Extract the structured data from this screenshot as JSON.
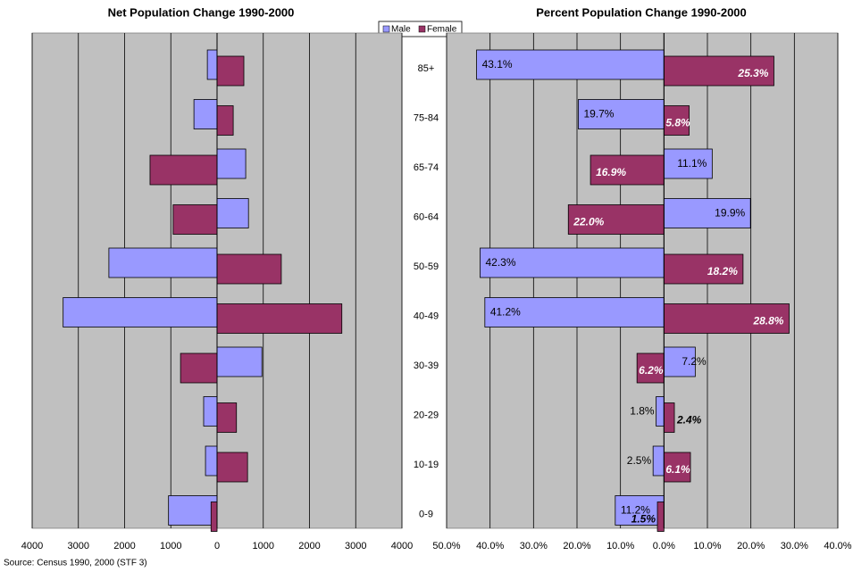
{
  "chart_data": [
    {
      "type": "bar",
      "orientation": "horizontal",
      "title": "Net Population Change 1990-2000",
      "categories": [
        "85+",
        "75-84",
        "65-74",
        "60-64",
        "50-59",
        "40-49",
        "30-39",
        "20-29",
        "10-19",
        "0-9"
      ],
      "series": [
        {
          "name": "Male",
          "color": "#9999ff",
          "values": [
            -210,
            -500,
            620,
            680,
            -2340,
            -3330,
            970,
            -290,
            -250,
            -1050
          ]
        },
        {
          "name": "Female",
          "color": "#993366",
          "values": [
            580,
            350,
            -1450,
            -950,
            1390,
            2700,
            -790,
            420,
            660,
            -130
          ]
        }
      ],
      "xlim": [
        -4000,
        4000
      ],
      "xticks": [
        {
          "value": -4000,
          "label": "4000"
        },
        {
          "value": -3000,
          "label": "3000"
        },
        {
          "value": -2000,
          "label": "2000"
        },
        {
          "value": -1000,
          "label": "1000"
        },
        0,
        1000,
        2000,
        3000,
        4000
      ],
      "grid": true,
      "background": "#c0c0c0",
      "note": "Source: Census 1990, 2000 (STF 3)"
    },
    {
      "type": "bar",
      "orientation": "horizontal",
      "title": "Percent Population Change 1990-2000",
      "series": [
        {
          "color": "#9999ff",
          "values": [
            -43.1,
            -19.7,
            11.1,
            19.9,
            -42.3,
            -41.2,
            7.2,
            -1.8,
            -2.5,
            -11.2
          ],
          "value_labels": [
            "43.1%",
            "19.7%",
            "11.1%",
            "19.9%",
            "42.3%",
            "41.2%",
            "7.2%",
            "1.8%",
            "2.5%",
            "11.2%"
          ]
        },
        {
          "color": "#993366",
          "values": [
            25.3,
            5.8,
            -16.9,
            -22.0,
            18.2,
            28.8,
            -6.2,
            2.4,
            6.1,
            -1.5
          ],
          "value_labels": [
            "25.3%",
            "5.8%",
            "16.9%",
            "22.0%",
            "18.2%",
            "28.8%",
            "6.2%",
            "2.4%",
            "6.1%",
            "1.5%"
          ]
        }
      ],
      "xlim": [
        -50,
        40
      ],
      "xticks": [
        {
          "value": -50,
          "label": "50.0%"
        },
        {
          "value": -40,
          "label": "40.0%"
        },
        {
          "value": -30,
          "label": "30.0%"
        },
        {
          "value": -20,
          "label": "20.0%"
        },
        {
          "value": -10,
          "label": "10.0%"
        },
        {
          "value": 0,
          "label": "0.0%"
        },
        {
          "value": 10,
          "label": "10.0%"
        },
        {
          "value": 20,
          "label": "20.0%"
        },
        {
          "value": 30,
          "label": "30.0%"
        },
        {
          "value": 40,
          "label": "40.0%"
        }
      ],
      "grid": true,
      "background": "#c0c0c0"
    }
  ]
}
